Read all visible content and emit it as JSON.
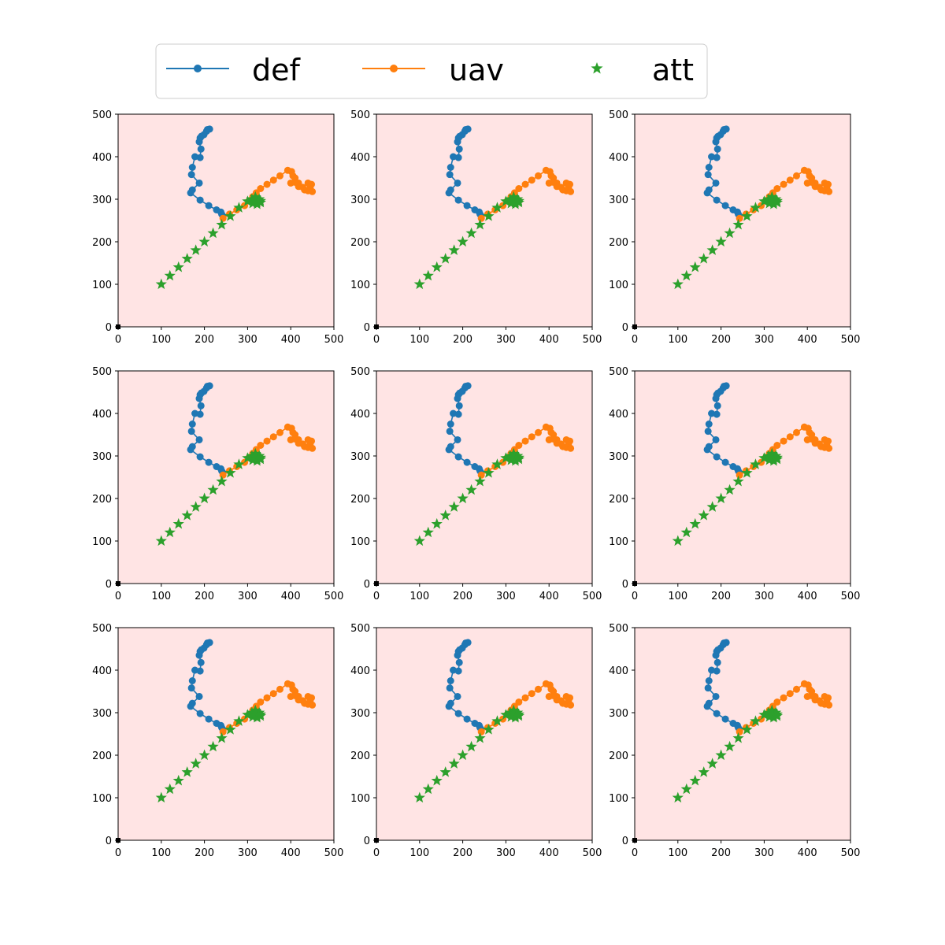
{
  "legend": {
    "entries": [
      {
        "label": "def",
        "color": "#1f77b4",
        "marker": "circle-line"
      },
      {
        "label": "uav",
        "color": "#ff7f0e",
        "marker": "circle-line"
      },
      {
        "label": "att",
        "color": "#2ca02c",
        "marker": "star"
      }
    ]
  },
  "colors": {
    "axes_background": "#ffe4e4",
    "origin_marker": "#000000"
  },
  "chart_data": {
    "type": "scatter",
    "layout": "3x3 grid of identical subplots",
    "panel_count": 9,
    "xlim": [
      0,
      500
    ],
    "ylim": [
      0,
      500
    ],
    "xticks": [
      0,
      100,
      200,
      300,
      400,
      500
    ],
    "yticks": [
      0,
      100,
      200,
      300,
      400,
      500
    ],
    "grid": false,
    "legend_position": "top-center",
    "origin_point": [
      0,
      0
    ],
    "series": [
      {
        "name": "def",
        "color": "#1f77b4",
        "marker": "circle",
        "line": true,
        "x": [
          212,
          207,
          205,
          199,
          193,
          190,
          188,
          192,
          190,
          178,
          172,
          170,
          188,
          172,
          168,
          190,
          210,
          228,
          238,
          240,
          243
        ],
        "y": [
          465,
          464,
          460,
          452,
          448,
          444,
          435,
          418,
          398,
          400,
          375,
          358,
          338,
          322,
          315,
          298,
          285,
          275,
          270,
          265,
          260
        ]
      },
      {
        "name": "uav",
        "color": "#ff7f0e",
        "marker": "circle",
        "line": true,
        "x": [
          243,
          258,
          275,
          293,
          303,
          312,
          320,
          330,
          345,
          360,
          375,
          393,
          402,
          405,
          410,
          400,
          418,
          432,
          440,
          445,
          450,
          448,
          440,
          428,
          418,
          410
        ],
        "y": [
          255,
          265,
          275,
          285,
          296,
          306,
          315,
          325,
          335,
          345,
          355,
          368,
          365,
          355,
          350,
          338,
          330,
          322,
          320,
          328,
          318,
          335,
          338,
          328,
          338,
          340
        ]
      },
      {
        "name": "att",
        "color": "#2ca02c",
        "marker": "star",
        "line": false,
        "x": [
          100,
          120,
          140,
          160,
          180,
          200,
          220,
          240,
          260,
          280,
          300,
          310,
          318,
          322,
          327,
          312,
          318,
          330,
          322,
          330
        ],
        "y": [
          100,
          120,
          140,
          160,
          180,
          200,
          220,
          240,
          260,
          280,
          295,
          300,
          305,
          292,
          300,
          290,
          298,
          296,
          288,
          292
        ]
      }
    ]
  }
}
